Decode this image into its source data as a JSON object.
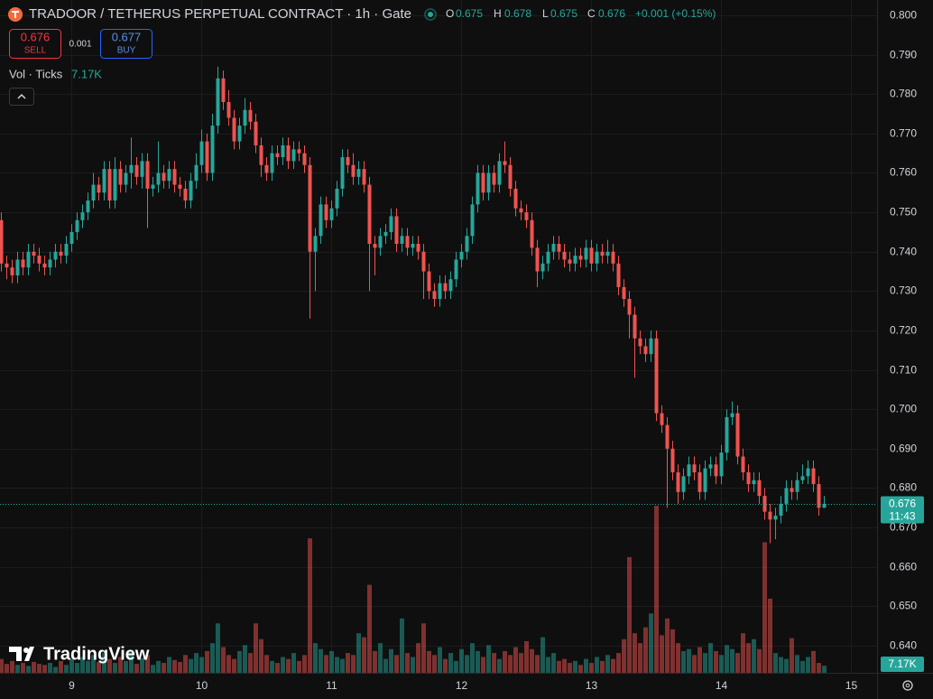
{
  "chart_data": {
    "type": "candlestick",
    "title": "TRADOOR / TETHERUS PERPETUAL CONTRACT · 1h · Gate",
    "ohlc_labels": [
      "O",
      "H",
      "L",
      "C"
    ],
    "change": "+0.001 (+0.15%)",
    "trade": {
      "sell_label": "SELL",
      "buy_label": "BUY",
      "buy_price": 0.677,
      "spread": 0.001
    },
    "volume_label": "Vol · Ticks",
    "volume_value_label": "7.17K",
    "countdown": "11:43",
    "watermark": "TradingView",
    "up_color": "#26a69a",
    "down_color": "#ef5350",
    "open": [
      0.748,
      0.737,
      0.736,
      0.734,
      0.738,
      0.736,
      0.74,
      0.739,
      0.737,
      0.736,
      0.738,
      0.74,
      0.739,
      0.742,
      0.745,
      0.748,
      0.75,
      0.753,
      0.757,
      0.755,
      0.761,
      0.753,
      0.761,
      0.757,
      0.76,
      0.762,
      0.759,
      0.763,
      0.756,
      0.757,
      0.76,
      0.758,
      0.761,
      0.757,
      0.756,
      0.753,
      0.758,
      0.762,
      0.768,
      0.76,
      0.772,
      0.784,
      0.778,
      0.774,
      0.768,
      0.772,
      0.776,
      0.773,
      0.767,
      0.762,
      0.76,
      0.765,
      0.764,
      0.767,
      0.763,
      0.766,
      0.765,
      0.762,
      0.74,
      0.744,
      0.752,
      0.748,
      0.751,
      0.756,
      0.764,
      0.762,
      0.759,
      0.761,
      0.757,
      0.742,
      0.741,
      0.744,
      0.745,
      0.749,
      0.742,
      0.744,
      0.741,
      0.742,
      0.74,
      0.735,
      0.73,
      0.728,
      0.732,
      0.73,
      0.733,
      0.738,
      0.74,
      0.744,
      0.752,
      0.76,
      0.755,
      0.76,
      0.757,
      0.763,
      0.762,
      0.756,
      0.751,
      0.75,
      0.748,
      0.741,
      0.735,
      0.737,
      0.74,
      0.742,
      0.74,
      0.738,
      0.737,
      0.739,
      0.738,
      0.741,
      0.737,
      0.74,
      0.739,
      0.74,
      0.737,
      0.731,
      0.728,
      0.724,
      0.718,
      0.716,
      0.714,
      0.718,
      0.699,
      0.696,
      0.69,
      0.684,
      0.679,
      0.683,
      0.686,
      0.684,
      0.679,
      0.685,
      0.686,
      0.683,
      0.689,
      0.698,
      0.699,
      0.688,
      0.684,
      0.681,
      0.682,
      0.678,
      0.674,
      0.672,
      0.673,
      0.676,
      0.68,
      0.679,
      0.682,
      0.683,
      0.685,
      0.681,
      0.675
    ],
    "high": [
      0.75,
      0.739,
      0.738,
      0.74,
      0.74,
      0.742,
      0.742,
      0.741,
      0.739,
      0.74,
      0.742,
      0.742,
      0.744,
      0.747,
      0.75,
      0.752,
      0.755,
      0.76,
      0.759,
      0.763,
      0.763,
      0.764,
      0.763,
      0.762,
      0.769,
      0.764,
      0.765,
      0.765,
      0.759,
      0.768,
      0.762,
      0.763,
      0.763,
      0.759,
      0.758,
      0.76,
      0.765,
      0.771,
      0.77,
      0.775,
      0.787,
      0.786,
      0.781,
      0.776,
      0.774,
      0.779,
      0.778,
      0.775,
      0.769,
      0.764,
      0.767,
      0.767,
      0.769,
      0.769,
      0.768,
      0.768,
      0.767,
      0.764,
      0.746,
      0.754,
      0.754,
      0.753,
      0.758,
      0.766,
      0.766,
      0.765,
      0.763,
      0.763,
      0.759,
      0.744,
      0.746,
      0.747,
      0.751,
      0.751,
      0.746,
      0.746,
      0.744,
      0.744,
      0.742,
      0.737,
      0.732,
      0.734,
      0.734,
      0.735,
      0.74,
      0.742,
      0.746,
      0.754,
      0.762,
      0.762,
      0.762,
      0.762,
      0.765,
      0.768,
      0.764,
      0.758,
      0.753,
      0.752,
      0.75,
      0.743,
      0.739,
      0.742,
      0.744,
      0.744,
      0.742,
      0.74,
      0.741,
      0.741,
      0.743,
      0.743,
      0.742,
      0.742,
      0.743,
      0.742,
      0.739,
      0.733,
      0.73,
      0.726,
      0.72,
      0.718,
      0.72,
      0.72,
      0.701,
      0.698,
      0.692,
      0.686,
      0.685,
      0.688,
      0.688,
      0.686,
      0.687,
      0.688,
      0.688,
      0.691,
      0.7,
      0.702,
      0.701,
      0.69,
      0.686,
      0.684,
      0.684,
      0.68,
      0.676,
      0.675,
      0.678,
      0.682,
      0.682,
      0.684,
      0.686,
      0.687,
      0.687,
      0.683,
      0.678
    ],
    "low": [
      0.735,
      0.733,
      0.732,
      0.732,
      0.734,
      0.734,
      0.737,
      0.735,
      0.734,
      0.734,
      0.736,
      0.737,
      0.737,
      0.74,
      0.743,
      0.746,
      0.748,
      0.751,
      0.753,
      0.753,
      0.751,
      0.751,
      0.755,
      0.755,
      0.756,
      0.757,
      0.756,
      0.746,
      0.754,
      0.755,
      0.756,
      0.756,
      0.755,
      0.754,
      0.751,
      0.751,
      0.756,
      0.76,
      0.758,
      0.758,
      0.77,
      0.776,
      0.772,
      0.766,
      0.766,
      0.77,
      0.771,
      0.765,
      0.759,
      0.758,
      0.758,
      0.762,
      0.762,
      0.761,
      0.761,
      0.763,
      0.76,
      0.723,
      0.73,
      0.742,
      0.746,
      0.746,
      0.749,
      0.754,
      0.76,
      0.757,
      0.757,
      0.755,
      0.73,
      0.734,
      0.739,
      0.742,
      0.743,
      0.74,
      0.74,
      0.739,
      0.739,
      0.738,
      0.728,
      0.728,
      0.726,
      0.726,
      0.728,
      0.728,
      0.731,
      0.736,
      0.738,
      0.742,
      0.75,
      0.753,
      0.753,
      0.755,
      0.755,
      0.76,
      0.754,
      0.749,
      0.748,
      0.746,
      0.739,
      0.731,
      0.733,
      0.735,
      0.738,
      0.738,
      0.736,
      0.735,
      0.735,
      0.736,
      0.736,
      0.735,
      0.735,
      0.737,
      0.737,
      0.735,
      0.729,
      0.726,
      0.718,
      0.708,
      0.714,
      0.712,
      0.712,
      0.697,
      0.694,
      0.675,
      0.682,
      0.676,
      0.677,
      0.681,
      0.682,
      0.677,
      0.677,
      0.683,
      0.681,
      0.681,
      0.687,
      0.696,
      0.686,
      0.682,
      0.679,
      0.679,
      0.676,
      0.672,
      0.666,
      0.667,
      0.671,
      0.674,
      0.677,
      0.677,
      0.681,
      0.681,
      0.679,
      0.673,
      0.675
    ],
    "close": [
      0.737,
      0.736,
      0.734,
      0.738,
      0.736,
      0.74,
      0.739,
      0.737,
      0.736,
      0.738,
      0.74,
      0.739,
      0.742,
      0.745,
      0.748,
      0.75,
      0.753,
      0.757,
      0.755,
      0.761,
      0.753,
      0.761,
      0.757,
      0.76,
      0.762,
      0.759,
      0.763,
      0.756,
      0.757,
      0.76,
      0.758,
      0.761,
      0.757,
      0.756,
      0.753,
      0.758,
      0.762,
      0.768,
      0.76,
      0.772,
      0.784,
      0.778,
      0.774,
      0.768,
      0.772,
      0.776,
      0.773,
      0.767,
      0.762,
      0.76,
      0.765,
      0.764,
      0.767,
      0.763,
      0.766,
      0.765,
      0.762,
      0.74,
      0.744,
      0.752,
      0.748,
      0.751,
      0.756,
      0.764,
      0.762,
      0.759,
      0.761,
      0.757,
      0.742,
      0.741,
      0.744,
      0.745,
      0.749,
      0.742,
      0.744,
      0.741,
      0.742,
      0.74,
      0.735,
      0.73,
      0.728,
      0.732,
      0.73,
      0.733,
      0.738,
      0.74,
      0.744,
      0.752,
      0.76,
      0.755,
      0.76,
      0.757,
      0.763,
      0.762,
      0.756,
      0.751,
      0.75,
      0.748,
      0.741,
      0.735,
      0.737,
      0.74,
      0.742,
      0.74,
      0.738,
      0.737,
      0.739,
      0.738,
      0.741,
      0.737,
      0.74,
      0.739,
      0.74,
      0.737,
      0.731,
      0.728,
      0.724,
      0.718,
      0.716,
      0.714,
      0.718,
      0.699,
      0.696,
      0.69,
      0.684,
      0.679,
      0.683,
      0.686,
      0.684,
      0.679,
      0.685,
      0.686,
      0.683,
      0.689,
      0.698,
      0.699,
      0.688,
      0.684,
      0.681,
      0.682,
      0.678,
      0.674,
      0.672,
      0.673,
      0.676,
      0.68,
      0.679,
      0.682,
      0.683,
      0.685,
      0.681,
      0.675,
      0.676
    ],
    "volume": [
      14,
      9,
      12,
      8,
      10,
      7,
      11,
      9,
      8,
      10,
      6,
      12,
      8,
      14,
      10,
      16,
      12,
      18,
      11,
      20,
      14,
      10,
      16,
      12,
      22,
      9,
      15,
      18,
      8,
      12,
      10,
      16,
      13,
      11,
      18,
      14,
      20,
      16,
      22,
      30,
      50,
      26,
      18,
      14,
      22,
      28,
      20,
      50,
      34,
      18,
      12,
      10,
      16,
      14,
      20,
      12,
      18,
      136,
      30,
      24,
      18,
      22,
      16,
      14,
      20,
      18,
      40,
      36,
      89,
      22,
      30,
      14,
      24,
      18,
      55,
      20,
      16,
      30,
      50,
      22,
      18,
      26,
      14,
      20,
      12,
      24,
      18,
      30,
      22,
      16,
      28,
      20,
      14,
      22,
      18,
      26,
      20,
      32,
      24,
      18,
      36,
      16,
      20,
      12,
      14,
      10,
      12,
      8,
      14,
      10,
      16,
      12,
      18,
      14,
      20,
      34,
      117,
      40,
      30,
      46,
      60,
      169,
      38,
      55,
      44,
      30,
      22,
      24,
      18,
      26,
      20,
      30,
      22,
      18,
      28,
      24,
      20,
      40,
      30,
      34,
      24,
      132,
      75,
      20,
      16,
      14,
      35,
      18,
      12,
      16,
      22,
      10,
      7.17
    ],
    "xlim": [
      -0.17,
      161.83
    ],
    "xticks": [
      {
        "value": 13,
        "label": "9"
      },
      {
        "value": 37,
        "label": "10"
      },
      {
        "value": 61,
        "label": "11"
      },
      {
        "value": 85,
        "label": "12"
      },
      {
        "value": 109,
        "label": "13"
      },
      {
        "value": 133,
        "label": "14"
      },
      {
        "value": 157,
        "label": "15"
      }
    ],
    "ylim": [
      0.6331,
      0.8039
    ],
    "yticks": [
      {
        "value": 0.8,
        "label": "0.800"
      },
      {
        "value": 0.79,
        "label": "0.790"
      },
      {
        "value": 0.78,
        "label": "0.780"
      },
      {
        "value": 0.77,
        "label": "0.770"
      },
      {
        "value": 0.76,
        "label": "0.760"
      },
      {
        "value": 0.75,
        "label": "0.750"
      },
      {
        "value": 0.74,
        "label": "0.740"
      },
      {
        "value": 0.73,
        "label": "0.730"
      },
      {
        "value": 0.72,
        "label": "0.720"
      },
      {
        "value": 0.71,
        "label": "0.710"
      },
      {
        "value": 0.7,
        "label": "0.700"
      },
      {
        "value": 0.69,
        "label": "0.690"
      },
      {
        "value": 0.68,
        "label": "0.680"
      },
      {
        "value": 0.67,
        "label": "0.670"
      },
      {
        "value": 0.66,
        "label": "0.660"
      },
      {
        "value": 0.65,
        "label": "0.650"
      },
      {
        "value": 0.64,
        "label": "0.640"
      }
    ],
    "vlim": [
      0,
      190
    ],
    "grid": true
  }
}
